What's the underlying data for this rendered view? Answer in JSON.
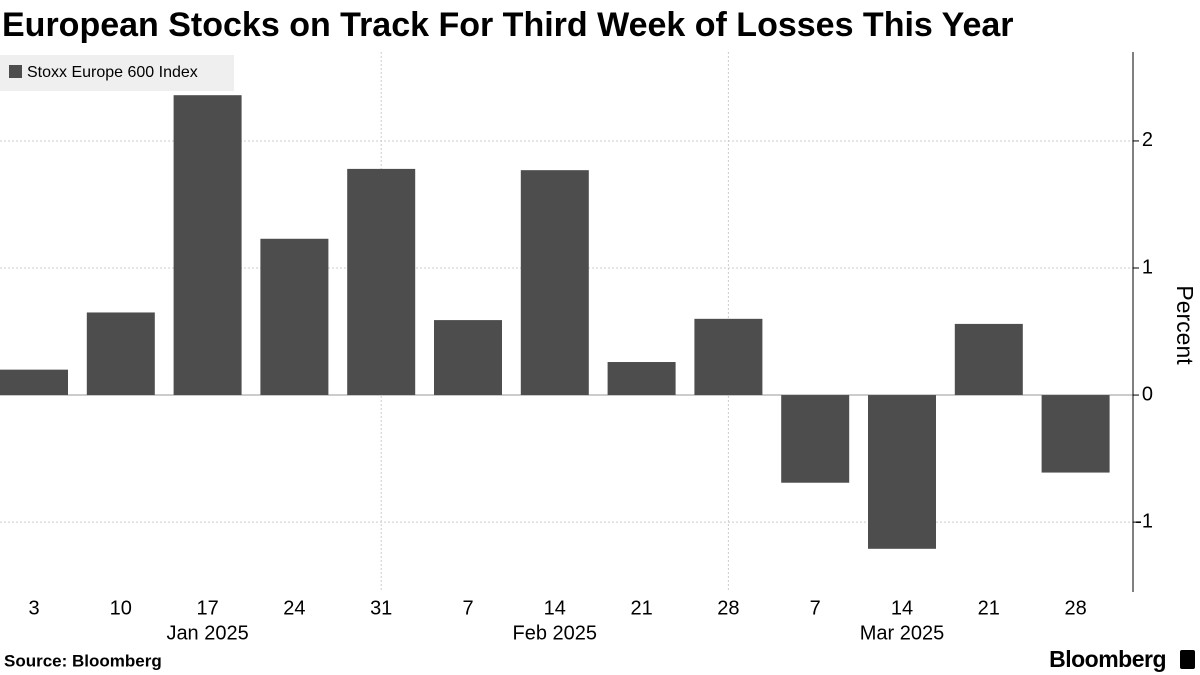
{
  "chart_data": {
    "type": "bar",
    "title": "European Stocks on Track For Third Week of Losses This Year",
    "categories": [
      "3",
      "10",
      "17",
      "24",
      "31",
      "7",
      "14",
      "21",
      "28",
      "7",
      "14",
      "21",
      "28"
    ],
    "months": [
      "Jan 2025",
      "Feb 2025",
      "Mar 2025"
    ],
    "series": [
      {
        "name": "Stoxx Europe 600 Index",
        "color": "#4d4d4d",
        "values": [
          0.2,
          0.65,
          2.36,
          1.23,
          1.78,
          0.59,
          1.77,
          0.26,
          0.6,
          -0.69,
          -1.21,
          0.56,
          -0.61
        ]
      }
    ],
    "ylabel": "Percent",
    "ylim": [
      -1.55,
      2.7
    ],
    "yticks": [
      -1,
      0,
      1,
      2
    ],
    "grid": true,
    "source": "Source: Bloomberg",
    "brand": "Bloomberg"
  }
}
